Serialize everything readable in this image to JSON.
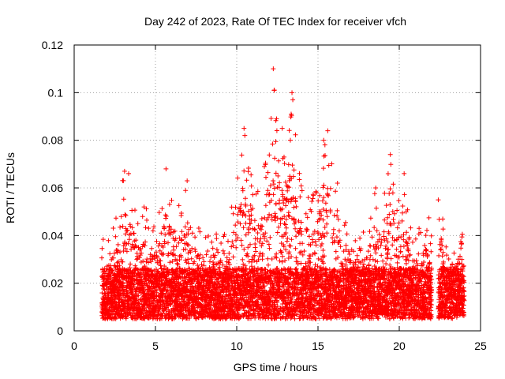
{
  "chart_data": {
    "type": "scatter",
    "title": "Day 242 of 2023, Rate Of TEC Index for receiver vfch",
    "xlabel": "GPS time / hours",
    "ylabel": "ROTI / TECUs",
    "xlim": [
      0,
      25
    ],
    "ylim": [
      0,
      0.12
    ],
    "xticks": [
      0,
      5,
      10,
      15,
      20,
      25
    ],
    "yticks": [
      0,
      0.02,
      0.04,
      0.06,
      0.08,
      0.1,
      0.12
    ],
    "xtick_labels": [
      "0",
      "5",
      "10",
      "15",
      "20",
      "25"
    ],
    "ytick_labels": [
      "0",
      "0.02",
      "0.04",
      "0.06",
      "0.08",
      "0.1",
      "0.12"
    ],
    "grid": true,
    "marker": "+",
    "colors": {
      "series": "#ff0000",
      "grid": "#a0a0a0"
    },
    "data_coverage_hours": [
      1.7,
      24.0
    ],
    "data_gaps_hours": [
      [
        22.0,
        22.4
      ]
    ],
    "typical_range": [
      0.005,
      0.03
    ],
    "envelope": [
      [
        1.7,
        0.04
      ],
      [
        2.0,
        0.036
      ],
      [
        2.5,
        0.045
      ],
      [
        3.0,
        0.067
      ],
      [
        3.5,
        0.062
      ],
      [
        4.0,
        0.048
      ],
      [
        4.4,
        0.052
      ],
      [
        5.0,
        0.045
      ],
      [
        5.6,
        0.068
      ],
      [
        6.0,
        0.058
      ],
      [
        6.5,
        0.055
      ],
      [
        6.9,
        0.064
      ],
      [
        7.5,
        0.045
      ],
      [
        8.0,
        0.046
      ],
      [
        8.5,
        0.042
      ],
      [
        9.0,
        0.04
      ],
      [
        9.5,
        0.045
      ],
      [
        10.0,
        0.065
      ],
      [
        10.4,
        0.086
      ],
      [
        10.8,
        0.07
      ],
      [
        11.2,
        0.058
      ],
      [
        11.7,
        0.07
      ],
      [
        12.0,
        0.08
      ],
      [
        12.3,
        0.111
      ],
      [
        12.6,
        0.088
      ],
      [
        13.0,
        0.078
      ],
      [
        13.4,
        0.1
      ],
      [
        13.8,
        0.068
      ],
      [
        14.3,
        0.06
      ],
      [
        14.8,
        0.058
      ],
      [
        15.3,
        0.08
      ],
      [
        15.6,
        0.085
      ],
      [
        16.0,
        0.063
      ],
      [
        16.5,
        0.05
      ],
      [
        17.0,
        0.04
      ],
      [
        17.5,
        0.04
      ],
      [
        18.0,
        0.044
      ],
      [
        18.5,
        0.06
      ],
      [
        19.0,
        0.055
      ],
      [
        19.5,
        0.074
      ],
      [
        20.0,
        0.054
      ],
      [
        20.4,
        0.066
      ],
      [
        20.8,
        0.04
      ],
      [
        21.3,
        0.044
      ],
      [
        22.0,
        0.051
      ],
      [
        22.6,
        0.055
      ],
      [
        23.0,
        0.03
      ],
      [
        23.5,
        0.037
      ],
      [
        24.0,
        0.043
      ]
    ],
    "spikes": [
      [
        12.25,
        0.11
      ],
      [
        12.3,
        0.101
      ],
      [
        13.4,
        0.1
      ],
      [
        13.45,
        0.097
      ],
      [
        13.35,
        0.091
      ],
      [
        12.45,
        0.089
      ],
      [
        10.45,
        0.085
      ],
      [
        15.6,
        0.084
      ],
      [
        10.5,
        0.082
      ],
      [
        15.35,
        0.08
      ],
      [
        13.3,
        0.08
      ],
      [
        12.8,
        0.085
      ],
      [
        19.45,
        0.074
      ],
      [
        6.95,
        0.063
      ],
      [
        5.65,
        0.068
      ],
      [
        3.1,
        0.067
      ],
      [
        3.35,
        0.066
      ],
      [
        20.3,
        0.066
      ],
      [
        11.7,
        0.069
      ],
      [
        14.9,
        0.058
      ],
      [
        16.2,
        0.062
      ],
      [
        18.55,
        0.06
      ],
      [
        22.4,
        0.055
      ],
      [
        4.3,
        0.052
      ]
    ]
  }
}
